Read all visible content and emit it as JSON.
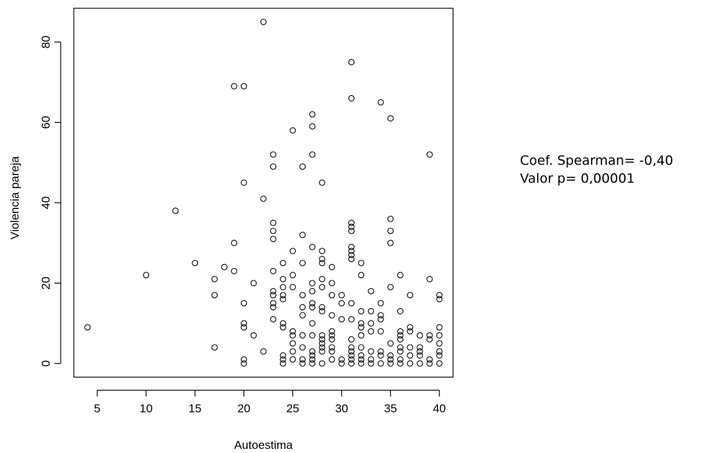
{
  "chart_data": {
    "type": "scatter",
    "title": "",
    "xlabel": "Autoestima",
    "ylabel": "Violencia pareja",
    "xlim": [
      2.6,
      41.4
    ],
    "ylim": [
      -3.4,
      88.4
    ],
    "x_ticks": [
      5,
      10,
      15,
      20,
      25,
      30,
      35,
      40
    ],
    "y_ticks": [
      0,
      20,
      40,
      60,
      80
    ],
    "grid": false,
    "marker": "open-circle",
    "annotations": [
      "Coef. Spearman= -0,40",
      "Valor p= 0,00001"
    ],
    "points": [
      [
        4,
        9
      ],
      [
        10,
        22
      ],
      [
        13,
        38
      ],
      [
        15,
        25
      ],
      [
        17,
        21
      ],
      [
        17,
        17
      ],
      [
        17,
        4
      ],
      [
        18,
        24
      ],
      [
        19,
        69
      ],
      [
        19,
        30
      ],
      [
        19,
        23
      ],
      [
        20,
        69
      ],
      [
        20,
        45
      ],
      [
        20,
        15
      ],
      [
        20,
        10
      ],
      [
        20,
        9
      ],
      [
        20,
        1
      ],
      [
        20,
        0
      ],
      [
        21,
        20
      ],
      [
        21,
        7
      ],
      [
        22,
        85
      ],
      [
        22,
        41
      ],
      [
        22,
        3
      ],
      [
        23,
        52
      ],
      [
        23,
        49
      ],
      [
        23,
        35
      ],
      [
        23,
        33
      ],
      [
        23,
        31
      ],
      [
        23,
        23
      ],
      [
        23,
        18
      ],
      [
        23,
        17
      ],
      [
        23,
        15
      ],
      [
        23,
        14
      ],
      [
        23,
        11
      ],
      [
        24,
        25
      ],
      [
        24,
        21
      ],
      [
        24,
        19
      ],
      [
        24,
        17
      ],
      [
        24,
        16
      ],
      [
        24,
        10
      ],
      [
        24,
        9
      ],
      [
        24,
        2
      ],
      [
        24,
        1
      ],
      [
        24,
        0
      ],
      [
        25,
        58
      ],
      [
        25,
        28
      ],
      [
        25,
        22
      ],
      [
        25,
        19
      ],
      [
        25,
        8
      ],
      [
        25,
        7
      ],
      [
        25,
        5
      ],
      [
        25,
        3
      ],
      [
        25,
        1
      ],
      [
        26,
        49
      ],
      [
        26,
        32
      ],
      [
        26,
        25
      ],
      [
        26,
        17
      ],
      [
        26,
        14
      ],
      [
        26,
        12
      ],
      [
        26,
        7
      ],
      [
        26,
        4
      ],
      [
        26,
        1
      ],
      [
        26,
        0
      ],
      [
        27,
        62
      ],
      [
        27,
        59
      ],
      [
        27,
        52
      ],
      [
        27,
        29
      ],
      [
        27,
        20
      ],
      [
        27,
        18
      ],
      [
        27,
        15
      ],
      [
        27,
        14
      ],
      [
        27,
        10
      ],
      [
        27,
        7
      ],
      [
        27,
        3
      ],
      [
        27,
        2
      ],
      [
        27,
        1
      ],
      [
        27,
        0
      ],
      [
        28,
        45
      ],
      [
        28,
        28
      ],
      [
        28,
        26
      ],
      [
        28,
        25
      ],
      [
        28,
        21
      ],
      [
        28,
        19
      ],
      [
        28,
        14
      ],
      [
        28,
        13
      ],
      [
        28,
        7
      ],
      [
        28,
        6
      ],
      [
        28,
        5
      ],
      [
        28,
        4
      ],
      [
        28,
        3
      ],
      [
        28,
        0
      ],
      [
        29,
        24
      ],
      [
        29,
        20
      ],
      [
        29,
        17
      ],
      [
        29,
        12
      ],
      [
        29,
        8
      ],
      [
        29,
        7
      ],
      [
        29,
        6
      ],
      [
        29,
        4
      ],
      [
        29,
        3
      ],
      [
        29,
        1
      ],
      [
        30,
        17
      ],
      [
        30,
        15
      ],
      [
        30,
        11
      ],
      [
        30,
        1
      ],
      [
        30,
        0
      ],
      [
        31,
        75
      ],
      [
        31,
        66
      ],
      [
        31,
        35
      ],
      [
        31,
        34
      ],
      [
        31,
        33
      ],
      [
        31,
        29
      ],
      [
        31,
        28
      ],
      [
        31,
        27
      ],
      [
        31,
        26
      ],
      [
        31,
        15
      ],
      [
        31,
        11
      ],
      [
        31,
        6
      ],
      [
        31,
        4
      ],
      [
        31,
        3
      ],
      [
        31,
        2
      ],
      [
        31,
        1
      ],
      [
        31,
        0
      ],
      [
        32,
        25
      ],
      [
        32,
        22
      ],
      [
        32,
        13
      ],
      [
        32,
        10
      ],
      [
        32,
        9
      ],
      [
        32,
        7
      ],
      [
        32,
        4
      ],
      [
        32,
        2
      ],
      [
        32,
        1
      ],
      [
        32,
        0
      ],
      [
        33,
        18
      ],
      [
        33,
        13
      ],
      [
        33,
        10
      ],
      [
        33,
        8
      ],
      [
        33,
        3
      ],
      [
        33,
        1
      ],
      [
        33,
        0
      ],
      [
        34,
        65
      ],
      [
        34,
        15
      ],
      [
        34,
        12
      ],
      [
        34,
        11
      ],
      [
        34,
        8
      ],
      [
        34,
        3
      ],
      [
        34,
        2
      ],
      [
        34,
        0
      ],
      [
        35,
        61
      ],
      [
        35,
        36
      ],
      [
        35,
        33
      ],
      [
        35,
        30
      ],
      [
        35,
        19
      ],
      [
        35,
        5
      ],
      [
        35,
        2
      ],
      [
        35,
        1
      ],
      [
        35,
        0
      ],
      [
        36,
        22
      ],
      [
        36,
        13
      ],
      [
        36,
        8
      ],
      [
        36,
        7
      ],
      [
        36,
        6
      ],
      [
        36,
        4
      ],
      [
        36,
        3
      ],
      [
        36,
        1
      ],
      [
        36,
        0
      ],
      [
        37,
        17
      ],
      [
        37,
        9
      ],
      [
        37,
        8
      ],
      [
        37,
        4
      ],
      [
        37,
        2
      ],
      [
        37,
        0
      ],
      [
        38,
        7
      ],
      [
        38,
        4
      ],
      [
        38,
        3
      ],
      [
        38,
        2
      ],
      [
        38,
        0
      ],
      [
        39,
        52
      ],
      [
        39,
        21
      ],
      [
        39,
        7
      ],
      [
        39,
        6
      ],
      [
        39,
        1
      ],
      [
        39,
        0
      ],
      [
        40,
        17
      ],
      [
        40,
        16
      ],
      [
        40,
        9
      ],
      [
        40,
        7
      ],
      [
        40,
        5
      ],
      [
        40,
        3
      ],
      [
        40,
        2
      ],
      [
        40,
        0
      ]
    ]
  }
}
